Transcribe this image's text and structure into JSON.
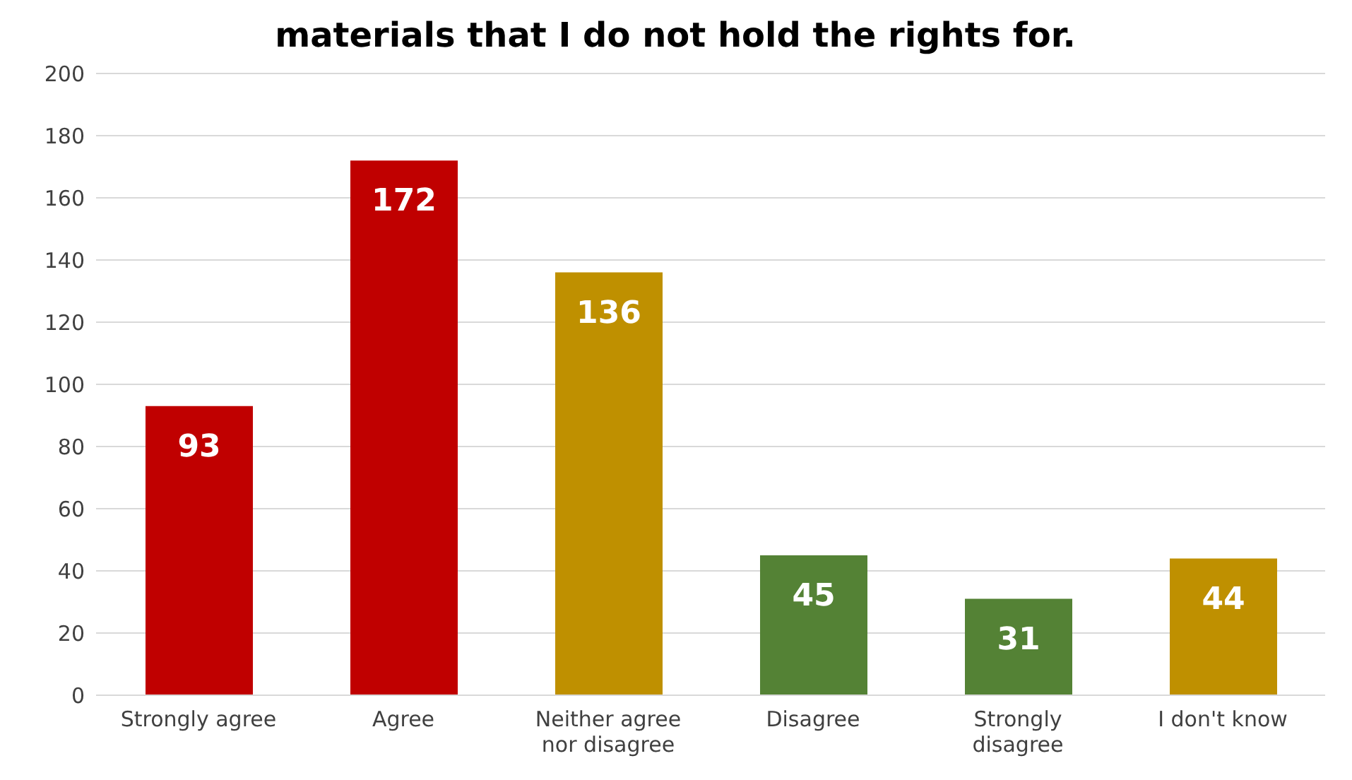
{
  "chart_data": {
    "type": "bar",
    "title": "materials that I do not hold the rights for.",
    "categories": [
      "Strongly agree",
      "Agree",
      "Neither agree nor disagree",
      "Disagree",
      "Strongly disagree",
      "I don't know"
    ],
    "values": [
      93,
      172,
      136,
      45,
      31,
      44
    ],
    "colors": [
      "#c00000",
      "#c00000",
      "#bf9000",
      "#548235",
      "#548235",
      "#bf9000"
    ],
    "ylim": [
      0,
      200
    ],
    "yticks": [
      0,
      20,
      40,
      60,
      80,
      100,
      120,
      140,
      160,
      180,
      200
    ],
    "grid": "y",
    "data_labels": true
  }
}
